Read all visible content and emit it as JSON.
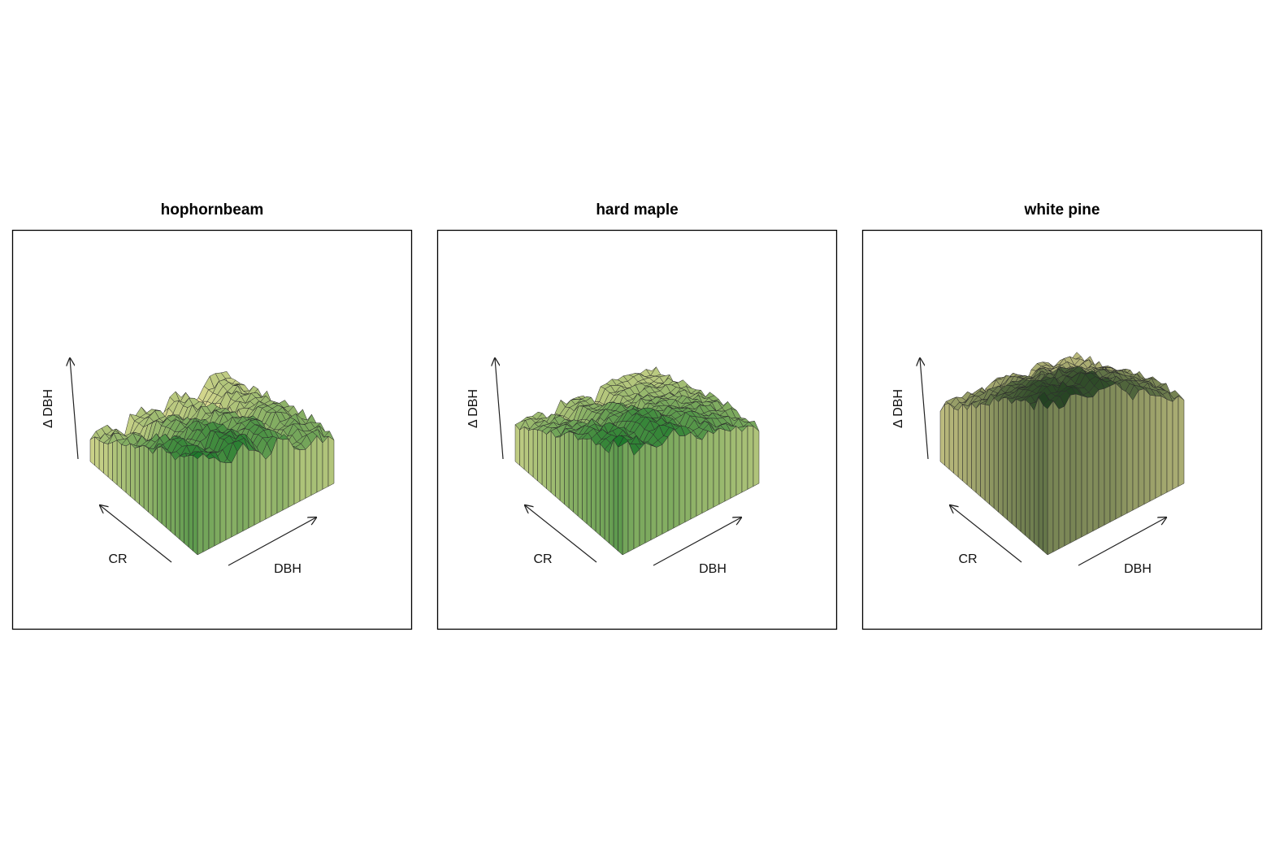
{
  "chart_data": [
    {
      "type": "surface3d",
      "title": "hophornbeam",
      "xlabel": "CR",
      "ylabel": "DBH",
      "zlabel": "Δ DBH",
      "surface": {
        "peak": 0.55,
        "peak_crown": 0.62,
        "decay": 1.0,
        "ridges": [
          0.22,
          0.5,
          0.75
        ],
        "ridge_depth": 0.15,
        "rough": 0.07,
        "base": 0.08
      },
      "color_low": "#f2e69e",
      "color_high": "#1f7a2c"
    },
    {
      "type": "surface3d",
      "title": "hard maple",
      "xlabel": "CR",
      "ylabel": "DBH",
      "zlabel": "Δ DBH",
      "surface": {
        "peak": 0.62,
        "peak_crown": 0.68,
        "decay": 0.85,
        "ridges": [
          0.25,
          0.55
        ],
        "ridge_depth": 0.12,
        "rough": 0.06,
        "base": 0.1
      },
      "color_low": "#f2e69e",
      "color_high": "#1f7a2c"
    },
    {
      "type": "surface3d",
      "title": "white pine",
      "xlabel": "CR",
      "ylabel": "DBH",
      "zlabel": "Δ DBH",
      "surface": {
        "peak": 0.95,
        "peak_crown": 0.75,
        "decay": 0.75,
        "ridges": [
          0.3,
          0.6
        ],
        "ridge_depth": 0.1,
        "rough": 0.06,
        "base": 0.12
      },
      "color_low": "#f2e69e",
      "color_high": "#1a3a1c"
    }
  ]
}
